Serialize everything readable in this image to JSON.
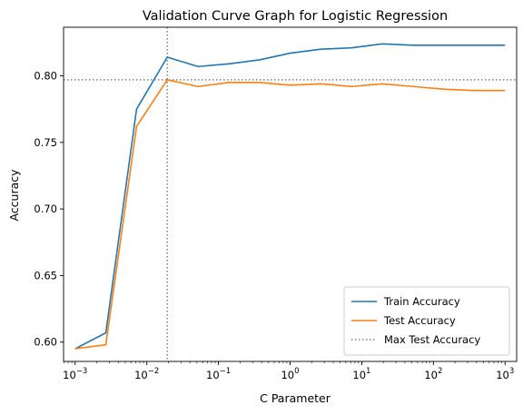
{
  "chart_data": {
    "type": "line",
    "title": "Validation Curve Graph for Logistic Regression",
    "xlabel": "C Parameter",
    "ylabel": "Accuracy",
    "xscale": "log",
    "xlim": [
      0.000689,
      1450
    ],
    "ylim": [
      0.5855,
      0.8365
    ],
    "x_ticks": [
      {
        "value": 0.001,
        "base": "10",
        "exp": "−3"
      },
      {
        "value": 0.01,
        "base": "10",
        "exp": "−2"
      },
      {
        "value": 0.1,
        "base": "10",
        "exp": "−1"
      },
      {
        "value": 1,
        "base": "10",
        "exp": "0"
      },
      {
        "value": 10,
        "base": "10",
        "exp": "1"
      },
      {
        "value": 100,
        "base": "10",
        "exp": "2"
      },
      {
        "value": 1000,
        "base": "10",
        "exp": "3"
      }
    ],
    "y_ticks": [
      {
        "value": 0.6,
        "label": "0.60"
      },
      {
        "value": 0.65,
        "label": "0.65"
      },
      {
        "value": 0.7,
        "label": "0.70"
      },
      {
        "value": 0.75,
        "label": "0.75"
      },
      {
        "value": 0.8,
        "label": "0.80"
      }
    ],
    "x": [
      0.001,
      0.00268,
      0.0072,
      0.0193,
      0.0518,
      0.139,
      0.373,
      1.0,
      2.68,
      7.2,
      19.3,
      51.8,
      139,
      373,
      1000
    ],
    "series": [
      {
        "name": "Train Accuracy",
        "color": "#1f77b4",
        "values": [
          0.595,
          0.607,
          0.775,
          0.814,
          0.807,
          0.809,
          0.812,
          0.817,
          0.82,
          0.821,
          0.824,
          0.823,
          0.823,
          0.823,
          0.823
        ]
      },
      {
        "name": "Test Accuracy",
        "color": "#ff7f0e",
        "values": [
          0.595,
          0.598,
          0.762,
          0.797,
          0.792,
          0.795,
          0.795,
          0.793,
          0.794,
          0.792,
          0.794,
          0.792,
          0.79,
          0.789,
          0.789
        ]
      }
    ],
    "reference_lines": {
      "name": "Max Test Accuracy",
      "color": "#808080",
      "style": "dotted",
      "x": 0.0193,
      "y": 0.797
    },
    "legend": {
      "placement": "lower-right",
      "entries": [
        "Train Accuracy",
        "Test Accuracy",
        "Max Test Accuracy"
      ]
    },
    "grid": false
  }
}
